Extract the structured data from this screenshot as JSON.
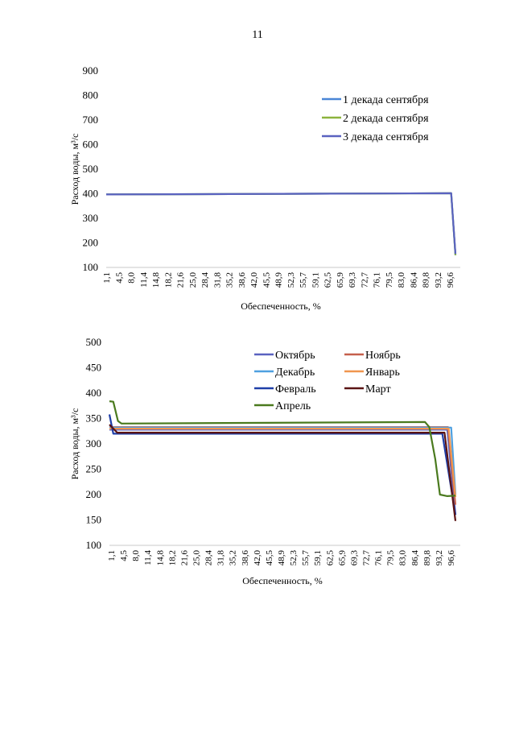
{
  "page": {
    "number": "11"
  },
  "chart_data": [
    {
      "type": "line",
      "xlabel": "Обеспеченность, %",
      "ylabel": "Расход воды, м³/с",
      "ylim": [
        100,
        900
      ],
      "yticks": [
        100,
        200,
        300,
        400,
        500,
        600,
        700,
        800,
        900
      ],
      "xtick_labels": [
        "1,1",
        "4,5",
        "8,0",
        "11,4",
        "14,8",
        "18,2",
        "21,6",
        "25,0",
        "28,4",
        "31,8",
        "35,2",
        "38,6",
        "42,0",
        "45,5",
        "48,9",
        "52,3",
        "55,7",
        "59,1",
        "62,5",
        "65,9",
        "69,3",
        "72,7",
        "76,1",
        "79,5",
        "83,0",
        "86,4",
        "89,8",
        "93,2",
        "96,6"
      ],
      "xlim": [
        1.1,
        98.9
      ],
      "legend_position": "top-right",
      "series": [
        {
          "name": "1 декада сентября",
          "color": "#4a86d6",
          "points": [
            [
              1.1,
              397
            ],
            [
              97.7,
              402
            ],
            [
              98.9,
              150
            ]
          ]
        },
        {
          "name": "2 декада сентября",
          "color": "#8cb33d",
          "points": [
            [
              1.1,
              397
            ],
            [
              97.7,
              402
            ],
            [
              98.9,
              150
            ]
          ]
        },
        {
          "name": "3 декада сентября",
          "color": "#5a62c0",
          "points": [
            [
              1.1,
              397
            ],
            [
              97.7,
              402
            ],
            [
              98.9,
              155
            ]
          ]
        }
      ]
    },
    {
      "type": "line",
      "xlabel": "Обеспеченность, %",
      "ylabel": "Расход воды, м³/с",
      "ylim": [
        100,
        500
      ],
      "yticks": [
        100,
        150,
        200,
        250,
        300,
        350,
        400,
        450,
        500
      ],
      "xtick_labels": [
        "1,1",
        "4,5",
        "8,0",
        "11,4",
        "14,8",
        "18,2",
        "21,6",
        "25,0",
        "28,4",
        "31,8",
        "35,2",
        "38,6",
        "42,0",
        "45,5",
        "48,9",
        "52,3",
        "55,7",
        "59,1",
        "62,5",
        "65,9",
        "69,3",
        "72,7",
        "76,1",
        "79,5",
        "83,0",
        "86,4",
        "89,8",
        "93,2",
        "96,6"
      ],
      "xlim": [
        1.1,
        98.9
      ],
      "legend_position": "top-right",
      "series": [
        {
          "name": "Октябрь",
          "color": "#5a62c0",
          "points": [
            [
              1.1,
              328
            ],
            [
              96.6,
              328
            ],
            [
              98.9,
              160
            ]
          ]
        },
        {
          "name": "Ноябрь",
          "color": "#c5604c",
          "points": [
            [
              1.1,
              333
            ],
            [
              96.8,
              333
            ],
            [
              98.9,
              180
            ]
          ]
        },
        {
          "name": "Декабрь",
          "color": "#4fa0e0",
          "points": [
            [
              1.1,
              332
            ],
            [
              97.7,
              332
            ],
            [
              98.9,
              200
            ]
          ]
        },
        {
          "name": "Январь",
          "color": "#f0964f",
          "points": [
            [
              1.1,
              330
            ],
            [
              97.0,
              330
            ],
            [
              98.9,
              195
            ]
          ]
        },
        {
          "name": "Февраль",
          "color": "#1f3fa8",
          "points": [
            [
              1.1,
              358
            ],
            [
              2.2,
              320
            ],
            [
              95.2,
              320
            ],
            [
              98.9,
              160
            ]
          ]
        },
        {
          "name": "Март",
          "color": "#5a1414",
          "points": [
            [
              1.1,
              338
            ],
            [
              3.3,
              322
            ],
            [
              95.8,
              322
            ],
            [
              98.9,
              148
            ]
          ]
        },
        {
          "name": "Апрель",
          "color": "#4a7a1e",
          "points": [
            [
              1.1,
              384
            ],
            [
              2.2,
              383
            ],
            [
              3.5,
              345
            ],
            [
              4.5,
              340
            ],
            [
              90.3,
              343
            ],
            [
              91.5,
              333
            ],
            [
              93.2,
              270
            ],
            [
              94.5,
              200
            ],
            [
              96.6,
              197
            ],
            [
              98.9,
              198
            ]
          ]
        }
      ]
    }
  ]
}
